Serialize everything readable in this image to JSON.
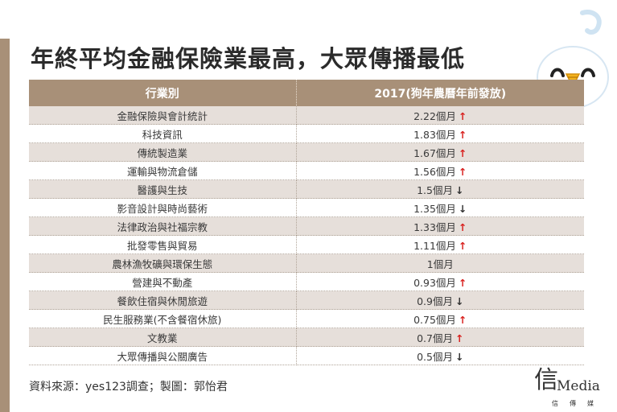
{
  "title": "年終平均金融保險業最高，大眾傳播最低",
  "table": {
    "headers": [
      "行業別",
      "2017(狗年農曆年前發放)"
    ],
    "rows": [
      {
        "industry": "金融保險與會計統計",
        "value": "2.22個月",
        "trend": "↑",
        "trend_dir": "up"
      },
      {
        "industry": "科技資訊",
        "value": "1.83個月",
        "trend": "↑",
        "trend_dir": "up"
      },
      {
        "industry": "傳統製造業",
        "value": "1.67個月",
        "trend": "↑",
        "trend_dir": "up"
      },
      {
        "industry": "運輸與物流倉儲",
        "value": "1.56個月",
        "trend": "↑",
        "trend_dir": "up"
      },
      {
        "industry": "醫護與生技",
        "value": "1.5個月",
        "trend": "↓",
        "trend_dir": "down"
      },
      {
        "industry": "影音設計與時尚藝術",
        "value": "1.35個月",
        "trend": "↓",
        "trend_dir": "down"
      },
      {
        "industry": "法律政治與社福宗教",
        "value": "1.33個月",
        "trend": "↑",
        "trend_dir": "up"
      },
      {
        "industry": "批發零售與貿易",
        "value": "1.11個月",
        "trend": "↑",
        "trend_dir": "up"
      },
      {
        "industry": "農林漁牧礦與環保生態",
        "value": "1個月",
        "trend": "",
        "trend_dir": "none"
      },
      {
        "industry": "營建與不動產",
        "value": "0.93個月",
        "trend": "↑",
        "trend_dir": "up"
      },
      {
        "industry": "餐飲住宿與休閒旅遊",
        "value": "0.9個月",
        "trend": "↓",
        "trend_dir": "down"
      },
      {
        "industry": "民生服務業(不含餐宿休旅)",
        "value": "0.75個月",
        "trend": "↑",
        "trend_dir": "up"
      },
      {
        "industry": "文教業",
        "value": "0.7個月",
        "trend": "↑",
        "trend_dir": "up"
      },
      {
        "industry": "大眾傳播與公關廣告",
        "value": "0.5個月",
        "trend": "↓",
        "trend_dir": "down"
      }
    ]
  },
  "source": "資料來源：yes123調查；製圖：郭怡君",
  "logo": {
    "mark": "信",
    "text": "Media",
    "sub": "信傳媒"
  },
  "colors": {
    "header_bg": "#a89078",
    "row_alt": "#e6dfda",
    "arrow_up": "#d8201e",
    "arrow_down": "#333333"
  },
  "icons": {
    "mascot": "ghost-mascot-icon",
    "up": "arrow-up-icon",
    "down": "arrow-down-icon"
  }
}
